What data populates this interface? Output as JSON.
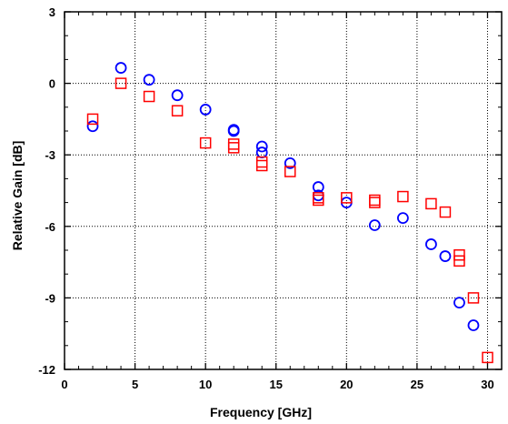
{
  "chart_data": {
    "type": "scatter",
    "title": "",
    "xlabel": "Frequency [GHz]",
    "ylabel": "Relative Gain [dB]",
    "xlim": [
      0,
      31
    ],
    "ylim": [
      -12,
      3
    ],
    "xticks": [
      0,
      5,
      10,
      15,
      20,
      25,
      30
    ],
    "yticks": [
      3,
      0,
      -3,
      -6,
      -9,
      -12
    ],
    "grid": true,
    "grid_style": "dotted",
    "legend": "none",
    "series": [
      {
        "marker": "circle",
        "color": "#0000ff",
        "points": [
          [
            2,
            -1.8
          ],
          [
            4,
            0.65
          ],
          [
            6,
            0.15
          ],
          [
            8,
            -0.5
          ],
          [
            10,
            -1.1
          ],
          [
            12,
            -1.95
          ],
          [
            12,
            -2.0
          ],
          [
            14,
            -2.65
          ],
          [
            14,
            -2.9
          ],
          [
            16,
            -3.35
          ],
          [
            18,
            -4.35
          ],
          [
            18,
            -4.7
          ],
          [
            20,
            -5.0
          ],
          [
            22,
            -5.95
          ],
          [
            24,
            -5.65
          ],
          [
            26,
            -6.75
          ],
          [
            27,
            -7.25
          ],
          [
            28,
            -9.2
          ],
          [
            29,
            -10.15
          ]
        ]
      },
      {
        "marker": "square",
        "color": "#ff0000",
        "points": [
          [
            2,
            -1.5
          ],
          [
            4,
            0.0
          ],
          [
            6,
            -0.55
          ],
          [
            8,
            -1.15
          ],
          [
            10,
            -2.5
          ],
          [
            12,
            -2.55
          ],
          [
            12,
            -2.7
          ],
          [
            14,
            -3.3
          ],
          [
            14,
            -3.45
          ],
          [
            16,
            -3.7
          ],
          [
            18,
            -4.8
          ],
          [
            18,
            -4.9
          ],
          [
            20,
            -4.8
          ],
          [
            22,
            -4.9
          ],
          [
            22,
            -5.0
          ],
          [
            24,
            -4.75
          ],
          [
            26,
            -5.05
          ],
          [
            27,
            -5.4
          ],
          [
            28,
            -7.2
          ],
          [
            28,
            -7.45
          ],
          [
            29,
            -9.0
          ],
          [
            30,
            -11.5
          ]
        ]
      }
    ]
  }
}
